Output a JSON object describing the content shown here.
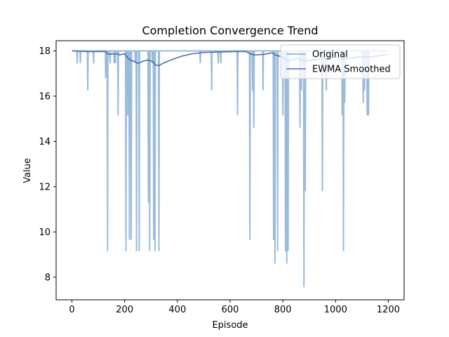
{
  "chart_data": {
    "type": "line",
    "title": "Completion Convergence Trend",
    "xlabel": "Episode",
    "ylabel": "Value",
    "xlim": [
      -60,
      1260
    ],
    "ylim": [
      7.0,
      18.45
    ],
    "xticks": [
      0,
      200,
      400,
      600,
      800,
      1000,
      1200
    ],
    "yticks": [
      8,
      10,
      12,
      14,
      16,
      18
    ],
    "legend_position": "top-right",
    "colors": {
      "original": "#9bbbd9",
      "smoothed": "#4a6fa5"
    },
    "baseline": 18,
    "series": [
      {
        "name": "Original",
        "x_start": 0,
        "x_end": 1200,
        "dips": [
          [
            20,
            17.45
          ],
          [
            32,
            17.45
          ],
          [
            60,
            16.25
          ],
          [
            82,
            17.45
          ],
          [
            128,
            16.8
          ],
          [
            135,
            9.15
          ],
          [
            145,
            17.45
          ],
          [
            160,
            17.45
          ],
          [
            165,
            17.45
          ],
          [
            175,
            15.15
          ],
          [
            205,
            9.15
          ],
          [
            212,
            15.15
          ],
          [
            218,
            9.65
          ],
          [
            225,
            9.65
          ],
          [
            240,
            17.45
          ],
          [
            245,
            9.15
          ],
          [
            255,
            9.15
          ],
          [
            290,
            11.3
          ],
          [
            295,
            9.15
          ],
          [
            305,
            17.45
          ],
          [
            310,
            9.65
          ],
          [
            315,
            9.15
          ],
          [
            330,
            9.15
          ],
          [
            487,
            17.45
          ],
          [
            530,
            16.25
          ],
          [
            555,
            17.45
          ],
          [
            565,
            17.45
          ],
          [
            628,
            15.15
          ],
          [
            675,
            9.65
          ],
          [
            685,
            16.25
          ],
          [
            690,
            14.6
          ],
          [
            725,
            16.25
          ],
          [
            765,
            9.65
          ],
          [
            770,
            8.6
          ],
          [
            780,
            9.15
          ],
          [
            800,
            15.15
          ],
          [
            810,
            9.15
          ],
          [
            815,
            8.6
          ],
          [
            820,
            9.15
          ],
          [
            865,
            14.6
          ],
          [
            870,
            16.25
          ],
          [
            880,
            7.55
          ],
          [
            885,
            11.8
          ],
          [
            950,
            11.8
          ],
          [
            965,
            16.25
          ],
          [
            1025,
            15.15
          ],
          [
            1030,
            9.15
          ],
          [
            1035,
            15.7
          ],
          [
            1105,
            15.7
          ],
          [
            1110,
            16.25
          ],
          [
            1120,
            15.15
          ],
          [
            1125,
            15.15
          ]
        ]
      },
      {
        "name": "EWMA Smoothed",
        "points": [
          [
            0,
            18.0
          ],
          [
            60,
            17.97
          ],
          [
            130,
            17.97
          ],
          [
            135,
            17.86
          ],
          [
            175,
            17.87
          ],
          [
            180,
            17.82
          ],
          [
            200,
            17.87
          ],
          [
            205,
            17.78
          ],
          [
            220,
            17.6
          ],
          [
            240,
            17.52
          ],
          [
            250,
            17.45
          ],
          [
            270,
            17.55
          ],
          [
            290,
            17.6
          ],
          [
            310,
            17.5
          ],
          [
            315,
            17.38
          ],
          [
            330,
            17.35
          ],
          [
            345,
            17.45
          ],
          [
            380,
            17.62
          ],
          [
            420,
            17.78
          ],
          [
            460,
            17.88
          ],
          [
            500,
            17.93
          ],
          [
            560,
            17.95
          ],
          [
            620,
            17.97
          ],
          [
            660,
            17.97
          ],
          [
            675,
            17.88
          ],
          [
            690,
            17.82
          ],
          [
            730,
            17.85
          ],
          [
            760,
            17.92
          ],
          [
            770,
            17.83
          ],
          [
            800,
            17.72
          ],
          [
            810,
            17.63
          ],
          [
            825,
            17.58
          ],
          [
            860,
            17.68
          ],
          [
            880,
            17.55
          ],
          [
            900,
            17.58
          ],
          [
            950,
            17.65
          ],
          [
            1000,
            17.72
          ],
          [
            1030,
            17.62
          ],
          [
            1060,
            17.7
          ],
          [
            1100,
            17.75
          ],
          [
            1125,
            17.72
          ],
          [
            1160,
            17.78
          ],
          [
            1200,
            17.85
          ]
        ]
      }
    ]
  }
}
